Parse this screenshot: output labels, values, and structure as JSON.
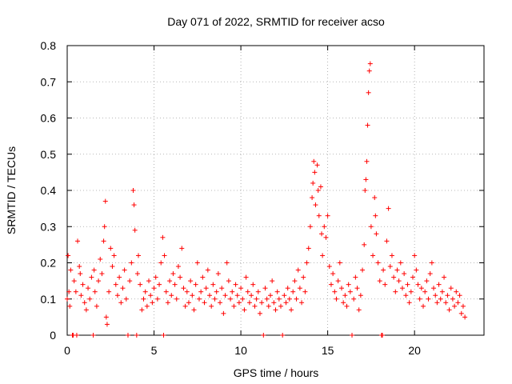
{
  "chart_data": {
    "type": "scatter",
    "title": "Day 071 of 2022, SRMTID for receiver acso",
    "xlabel": "GPS time / hours",
    "ylabel": "SRMTID / TECUs",
    "xlim": [
      0,
      24
    ],
    "ylim": [
      0,
      0.8
    ],
    "xticks": [
      0,
      5,
      10,
      15,
      20
    ],
    "xtick_labels": [
      "0",
      "5",
      "10",
      "15",
      "20"
    ],
    "yticks": [
      0,
      0.1,
      0.2,
      0.3,
      0.4,
      0.5,
      0.6,
      0.7,
      0.8
    ],
    "ytick_labels": [
      "0",
      "0.1",
      "0.2",
      "0.3",
      "0.4",
      "0.5",
      "0.6",
      "0.7",
      "0.8"
    ],
    "grid": true,
    "marker": "+",
    "color": "#ff0000",
    "series": [
      {
        "name": "SRMTID",
        "points": [
          [
            0.0,
            0.1
          ],
          [
            0.05,
            0.22
          ],
          [
            0.1,
            0.12
          ],
          [
            0.15,
            0.08
          ],
          [
            0.2,
            0.18
          ],
          [
            0.3,
            0.0
          ],
          [
            0.35,
            0.0
          ],
          [
            0.4,
            0.15
          ],
          [
            0.5,
            0.12
          ],
          [
            0.55,
            0.0
          ],
          [
            0.6,
            0.26
          ],
          [
            0.7,
            0.19
          ],
          [
            0.75,
            0.17
          ],
          [
            0.8,
            0.11
          ],
          [
            0.9,
            0.14
          ],
          [
            1.0,
            0.09
          ],
          [
            1.1,
            0.07
          ],
          [
            1.2,
            0.13
          ],
          [
            1.3,
            0.1
          ],
          [
            1.4,
            0.16
          ],
          [
            1.5,
            0.0
          ],
          [
            1.55,
            0.18
          ],
          [
            1.6,
            0.12
          ],
          [
            1.7,
            0.08
          ],
          [
            1.8,
            0.15
          ],
          [
            1.9,
            0.21
          ],
          [
            2.0,
            0.17
          ],
          [
            2.1,
            0.26
          ],
          [
            2.15,
            0.3
          ],
          [
            2.2,
            0.37
          ],
          [
            2.25,
            0.05
          ],
          [
            2.3,
            0.03
          ],
          [
            2.4,
            0.12
          ],
          [
            2.5,
            0.24
          ],
          [
            2.6,
            0.19
          ],
          [
            2.7,
            0.22
          ],
          [
            2.8,
            0.14
          ],
          [
            2.9,
            0.11
          ],
          [
            3.0,
            0.16
          ],
          [
            3.1,
            0.09
          ],
          [
            3.2,
            0.13
          ],
          [
            3.3,
            0.18
          ],
          [
            3.4,
            0.1
          ],
          [
            3.5,
            0.0
          ],
          [
            3.6,
            0.15
          ],
          [
            3.7,
            0.2
          ],
          [
            3.8,
            0.4
          ],
          [
            3.85,
            0.36
          ],
          [
            3.9,
            0.29
          ],
          [
            4.0,
            0.0
          ],
          [
            4.05,
            0.17
          ],
          [
            4.1,
            0.22
          ],
          [
            4.2,
            0.14
          ],
          [
            4.3,
            0.07
          ],
          [
            4.4,
            0.1
          ],
          [
            4.5,
            0.12
          ],
          [
            4.6,
            0.08
          ],
          [
            4.7,
            0.15
          ],
          [
            4.8,
            0.11
          ],
          [
            4.9,
            0.09
          ],
          [
            5.0,
            0.13
          ],
          [
            5.1,
            0.16
          ],
          [
            5.2,
            0.1
          ],
          [
            5.3,
            0.14
          ],
          [
            5.4,
            0.2
          ],
          [
            5.5,
            0.27
          ],
          [
            5.55,
            0.0
          ],
          [
            5.6,
            0.22
          ],
          [
            5.7,
            0.12
          ],
          [
            5.8,
            0.09
          ],
          [
            5.9,
            0.15
          ],
          [
            6.0,
            0.11
          ],
          [
            6.1,
            0.17
          ],
          [
            6.2,
            0.14
          ],
          [
            6.3,
            0.1
          ],
          [
            6.4,
            0.19
          ],
          [
            6.5,
            0.16
          ],
          [
            6.6,
            0.24
          ],
          [
            6.7,
            0.13
          ],
          [
            6.8,
            0.08
          ],
          [
            6.9,
            0.12
          ],
          [
            7.0,
            0.09
          ],
          [
            7.1,
            0.15
          ],
          [
            7.2,
            0.11
          ],
          [
            7.3,
            0.07
          ],
          [
            7.4,
            0.14
          ],
          [
            7.5,
            0.2
          ],
          [
            7.6,
            0.1
          ],
          [
            7.7,
            0.12
          ],
          [
            7.8,
            0.16
          ],
          [
            7.9,
            0.09
          ],
          [
            8.0,
            0.13
          ],
          [
            8.1,
            0.18
          ],
          [
            8.2,
            0.11
          ],
          [
            8.3,
            0.08
          ],
          [
            8.4,
            0.14
          ],
          [
            8.5,
            0.1
          ],
          [
            8.6,
            0.12
          ],
          [
            8.7,
            0.17
          ],
          [
            8.8,
            0.09
          ],
          [
            8.9,
            0.13
          ],
          [
            9.0,
            0.06
          ],
          [
            9.1,
            0.11
          ],
          [
            9.2,
            0.2
          ],
          [
            9.3,
            0.15
          ],
          [
            9.4,
            0.1
          ],
          [
            9.5,
            0.12
          ],
          [
            9.6,
            0.08
          ],
          [
            9.7,
            0.14
          ],
          [
            9.8,
            0.11
          ],
          [
            9.9,
            0.09
          ],
          [
            10.0,
            0.13
          ],
          [
            10.1,
            0.1
          ],
          [
            10.2,
            0.07
          ],
          [
            10.3,
            0.16
          ],
          [
            10.4,
            0.12
          ],
          [
            10.5,
            0.09
          ],
          [
            10.6,
            0.11
          ],
          [
            10.7,
            0.14
          ],
          [
            10.8,
            0.08
          ],
          [
            10.9,
            0.1
          ],
          [
            11.0,
            0.12
          ],
          [
            11.1,
            0.06
          ],
          [
            11.2,
            0.09
          ],
          [
            11.3,
            0.0
          ],
          [
            11.4,
            0.13
          ],
          [
            11.5,
            0.1
          ],
          [
            11.6,
            0.08
          ],
          [
            11.7,
            0.11
          ],
          [
            11.8,
            0.15
          ],
          [
            11.9,
            0.09
          ],
          [
            12.0,
            0.07
          ],
          [
            12.1,
            0.12
          ],
          [
            12.2,
            0.1
          ],
          [
            12.3,
            0.08
          ],
          [
            12.4,
            0.0
          ],
          [
            12.5,
            0.11
          ],
          [
            12.6,
            0.09
          ],
          [
            12.7,
            0.13
          ],
          [
            12.8,
            0.1
          ],
          [
            12.9,
            0.07
          ],
          [
            13.0,
            0.12
          ],
          [
            13.1,
            0.15
          ],
          [
            13.2,
            0.1
          ],
          [
            13.3,
            0.18
          ],
          [
            13.4,
            0.13
          ],
          [
            13.5,
            0.09
          ],
          [
            13.6,
            0.16
          ],
          [
            13.7,
            0.12
          ],
          [
            13.8,
            0.2
          ],
          [
            13.9,
            0.24
          ],
          [
            14.0,
            0.3
          ],
          [
            14.1,
            0.38
          ],
          [
            14.15,
            0.42
          ],
          [
            14.2,
            0.48
          ],
          [
            14.25,
            0.45
          ],
          [
            14.3,
            0.36
          ],
          [
            14.4,
            0.47
          ],
          [
            14.45,
            0.4
          ],
          [
            14.5,
            0.33
          ],
          [
            14.6,
            0.41
          ],
          [
            14.65,
            0.28
          ],
          [
            14.7,
            0.22
          ],
          [
            14.8,
            0.3
          ],
          [
            14.9,
            0.27
          ],
          [
            15.0,
            0.33
          ],
          [
            15.1,
            0.19
          ],
          [
            15.2,
            0.14
          ],
          [
            15.3,
            0.17
          ],
          [
            15.4,
            0.12
          ],
          [
            15.5,
            0.1
          ],
          [
            15.6,
            0.15
          ],
          [
            15.7,
            0.2
          ],
          [
            15.8,
            0.13
          ],
          [
            15.9,
            0.09
          ],
          [
            16.0,
            0.11
          ],
          [
            16.1,
            0.08
          ],
          [
            16.2,
            0.14
          ],
          [
            16.3,
            0.12
          ],
          [
            16.4,
            0.0
          ],
          [
            16.5,
            0.1
          ],
          [
            16.6,
            0.16
          ],
          [
            16.7,
            0.13
          ],
          [
            16.8,
            0.07
          ],
          [
            16.9,
            0.11
          ],
          [
            17.0,
            0.18
          ],
          [
            17.1,
            0.25
          ],
          [
            17.15,
            0.4
          ],
          [
            17.2,
            0.43
          ],
          [
            17.25,
            0.48
          ],
          [
            17.3,
            0.58
          ],
          [
            17.35,
            0.67
          ],
          [
            17.4,
            0.73
          ],
          [
            17.45,
            0.75
          ],
          [
            17.5,
            0.3
          ],
          [
            17.6,
            0.22
          ],
          [
            17.7,
            0.38
          ],
          [
            17.75,
            0.33
          ],
          [
            17.8,
            0.28
          ],
          [
            17.9,
            0.2
          ],
          [
            18.0,
            0.15
          ],
          [
            18.1,
            0.0
          ],
          [
            18.15,
            0.0
          ],
          [
            18.2,
            0.18
          ],
          [
            18.3,
            0.14
          ],
          [
            18.4,
            0.26
          ],
          [
            18.5,
            0.35
          ],
          [
            18.6,
            0.19
          ],
          [
            18.7,
            0.22
          ],
          [
            18.8,
            0.16
          ],
          [
            18.9,
            0.12
          ],
          [
            19.0,
            0.18
          ],
          [
            19.1,
            0.15
          ],
          [
            19.2,
            0.2
          ],
          [
            19.3,
            0.13
          ],
          [
            19.4,
            0.17
          ],
          [
            19.5,
            0.11
          ],
          [
            19.6,
            0.14
          ],
          [
            19.7,
            0.09
          ],
          [
            19.8,
            0.12
          ],
          [
            19.9,
            0.16
          ],
          [
            20.0,
            0.22
          ],
          [
            20.1,
            0.18
          ],
          [
            20.2,
            0.14
          ],
          [
            20.3,
            0.1
          ],
          [
            20.4,
            0.13
          ],
          [
            20.5,
            0.08
          ],
          [
            20.6,
            0.12
          ],
          [
            20.7,
            0.15
          ],
          [
            20.8,
            0.1
          ],
          [
            20.9,
            0.17
          ],
          [
            21.0,
            0.2
          ],
          [
            21.1,
            0.13
          ],
          [
            21.2,
            0.11
          ],
          [
            21.3,
            0.09
          ],
          [
            21.4,
            0.14
          ],
          [
            21.5,
            0.1
          ],
          [
            21.6,
            0.12
          ],
          [
            21.7,
            0.16
          ],
          [
            21.8,
            0.09
          ],
          [
            21.9,
            0.11
          ],
          [
            22.0,
            0.07
          ],
          [
            22.1,
            0.13
          ],
          [
            22.2,
            0.1
          ],
          [
            22.3,
            0.08
          ],
          [
            22.4,
            0.12
          ],
          [
            22.5,
            0.09
          ],
          [
            22.6,
            0.11
          ],
          [
            22.7,
            0.06
          ],
          [
            22.8,
            0.08
          ],
          [
            22.9,
            0.05
          ]
        ]
      }
    ]
  }
}
